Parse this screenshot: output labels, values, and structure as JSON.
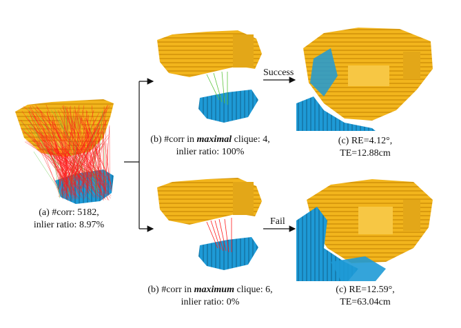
{
  "panel_a": {
    "caption_line1": "(a) #corr: 5182,",
    "caption_line2": "inlier ratio: 8.97%"
  },
  "panel_b_top": {
    "caption_prefix": "(b) #corr in ",
    "caption_emph": "maximal",
    "caption_suffix": " clique: 4,",
    "caption_line2": "inlier ratio: 100%"
  },
  "panel_b_bottom": {
    "caption_prefix": "(b) #corr in ",
    "caption_emph": "maximum",
    "caption_suffix": " clique: 6,",
    "caption_line2": "inlier ratio: 0%"
  },
  "panel_c_top": {
    "arrow_label": "Success",
    "caption_line1": "(c) RE=4.12°,",
    "caption_line2": "TE=12.88cm"
  },
  "panel_c_bottom": {
    "arrow_label": "Fail",
    "caption_line1": "(c) RE=12.59°,",
    "caption_line2": "TE=63.04cm"
  },
  "colors": {
    "source_cloud": "#f2b51c",
    "target_cloud": "#1e9ad6",
    "wrong_corr": "#ff1a1a",
    "correct_corr": "#5cc43c"
  }
}
